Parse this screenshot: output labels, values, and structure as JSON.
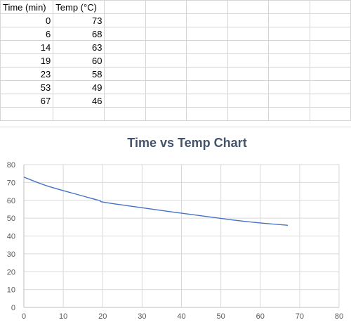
{
  "sheet": {
    "headers": [
      "Time (min)",
      "Temp (°C)"
    ],
    "rows": [
      [
        "0",
        "73"
      ],
      [
        "6",
        "68"
      ],
      [
        "14",
        "63"
      ],
      [
        "19",
        "60"
      ],
      [
        "23",
        "58"
      ],
      [
        "53",
        "49"
      ],
      [
        "67",
        "46"
      ]
    ]
  },
  "chart_data": {
    "type": "scatter",
    "title": "Time vs Temp Chart",
    "xlabel": "",
    "ylabel": "",
    "xlim": [
      0,
      80
    ],
    "ylim": [
      0,
      80
    ],
    "xticks": [
      0,
      10,
      20,
      30,
      40,
      50,
      60,
      70,
      80
    ],
    "yticks": [
      0,
      10,
      20,
      30,
      40,
      50,
      60,
      70,
      80
    ],
    "grid": true,
    "legend": "none",
    "line_style": "smooth",
    "series": [
      {
        "x": [
          0,
          6,
          14,
          19,
          23,
          53,
          67
        ],
        "y": [
          73,
          68,
          63,
          60,
          58,
          49,
          46
        ],
        "color": "#4472c4"
      }
    ]
  }
}
